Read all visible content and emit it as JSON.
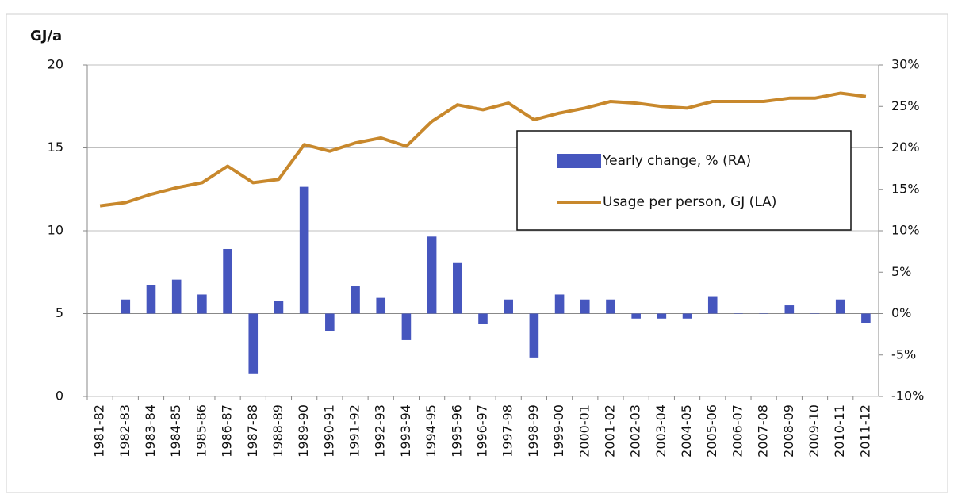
{
  "chart_data": {
    "type": "bar-line",
    "y_label": "GJ/a",
    "categories": [
      "1981-82",
      "1982-83",
      "1983-84",
      "1984-85",
      "1985-86",
      "1986-87",
      "1987-88",
      "1988-89",
      "1989-90",
      "1990-91",
      "1991-92",
      "1992-93",
      "1993-94",
      "1994-95",
      "1995-96",
      "1996-97",
      "1997-98",
      "1998-99",
      "1999-00",
      "2000-01",
      "2001-02",
      "2002-03",
      "2003-04",
      "2004-05",
      "2005-06",
      "2006-07",
      "2007-08",
      "2008-09",
      "2009-10",
      "2010-11",
      "2011-12"
    ],
    "series": [
      {
        "name": "Yearly change, % (RA)",
        "type": "bar",
        "axis": "y2",
        "color": "#4656be",
        "values": [
          null,
          1.7,
          3.4,
          4.1,
          2.3,
          7.8,
          -7.3,
          1.5,
          15.3,
          -2.1,
          3.3,
          1.9,
          -3.2,
          9.3,
          6.1,
          -1.2,
          1.7,
          -5.3,
          2.3,
          1.7,
          1.7,
          -0.6,
          -0.6,
          -0.6,
          2.1,
          0,
          0,
          1.0,
          0,
          1.7,
          -1.1
        ]
      },
      {
        "name": "Usage per person, GJ (LA)",
        "type": "line",
        "color": "#c8882c",
        "values": [
          11.5,
          11.7,
          12.2,
          12.6,
          12.9,
          13.9,
          12.9,
          13.1,
          15.2,
          14.8,
          15.3,
          15.6,
          15.1,
          16.6,
          17.6,
          17.3,
          17.7,
          16.7,
          17.1,
          17.4,
          17.8,
          17.7,
          17.5,
          17.4,
          17.8,
          17.8,
          17.8,
          18.0,
          18.0,
          18.3,
          18.1
        ]
      }
    ],
    "ylim": [
      0,
      20
    ],
    "yticks": [
      0,
      5,
      10,
      15,
      20
    ],
    "y2lim": [
      -10,
      30
    ],
    "y2ticks": [
      {
        "value": -10,
        "label": "-10%"
      },
      {
        "value": -5,
        "label": "-5%"
      },
      {
        "value": 0,
        "label": "0%"
      },
      {
        "value": 5,
        "label": "5%"
      },
      {
        "value": 10,
        "label": "10%"
      },
      {
        "value": 15,
        "label": "15%"
      },
      {
        "value": 20,
        "label": "20%"
      },
      {
        "value": 25,
        "label": "25%"
      },
      {
        "value": 30,
        "label": "30%"
      }
    ],
    "grid": true,
    "legend": "right"
  }
}
